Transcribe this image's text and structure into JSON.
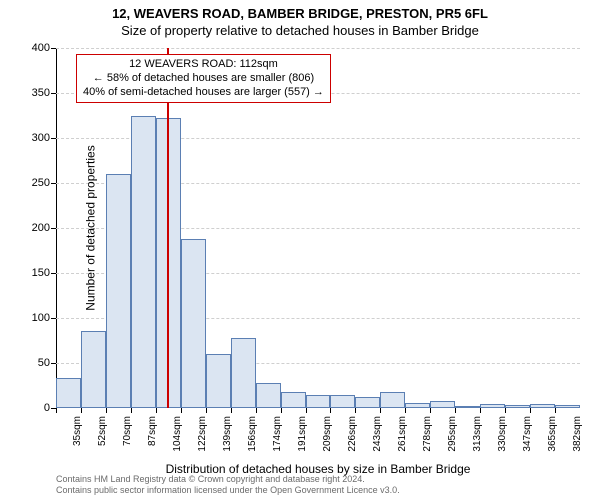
{
  "title": {
    "line1": "12, WEAVERS ROAD, BAMBER BRIDGE, PRESTON, PR5 6FL",
    "line2": "Size of property relative to detached houses in Bamber Bridge"
  },
  "chart": {
    "type": "histogram",
    "bar_fill": "#dbe5f2",
    "bar_stroke": "#5b7fb3",
    "background_color": "#ffffff",
    "grid_color": "#cfcfcf",
    "ref_line_color": "#cc0000",
    "ylabel": "Number of detached properties",
    "xlabel": "Distribution of detached houses by size in Bamber Bridge",
    "ylim": [
      0,
      400
    ],
    "ytick_step": 50,
    "y_ticks": [
      0,
      50,
      100,
      150,
      200,
      250,
      300,
      350,
      400
    ],
    "x_tick_labels": [
      "35sqm",
      "52sqm",
      "70sqm",
      "87sqm",
      "104sqm",
      "122sqm",
      "139sqm",
      "156sqm",
      "174sqm",
      "191sqm",
      "209sqm",
      "226sqm",
      "243sqm",
      "261sqm",
      "278sqm",
      "295sqm",
      "313sqm",
      "330sqm",
      "347sqm",
      "365sqm",
      "382sqm"
    ],
    "bars": [
      33,
      86,
      260,
      325,
      322,
      188,
      60,
      78,
      28,
      18,
      15,
      15,
      12,
      18,
      6,
      8,
      0,
      5,
      3,
      4,
      3
    ],
    "bar_count": 21,
    "ref_line_category_index": 4.43,
    "annotation": {
      "line1": "12 WEAVERS ROAD: 112sqm",
      "line2": "← 58% of detached houses are smaller (806)",
      "line3": "40% of semi-detached houses are larger (557) →"
    },
    "label_fontsize": 12,
    "tick_fontsize": 11
  },
  "footer": {
    "line1": "Contains HM Land Registry data © Crown copyright and database right 2024.",
    "line2": "Contains public sector information licensed under the Open Government Licence v3.0."
  }
}
